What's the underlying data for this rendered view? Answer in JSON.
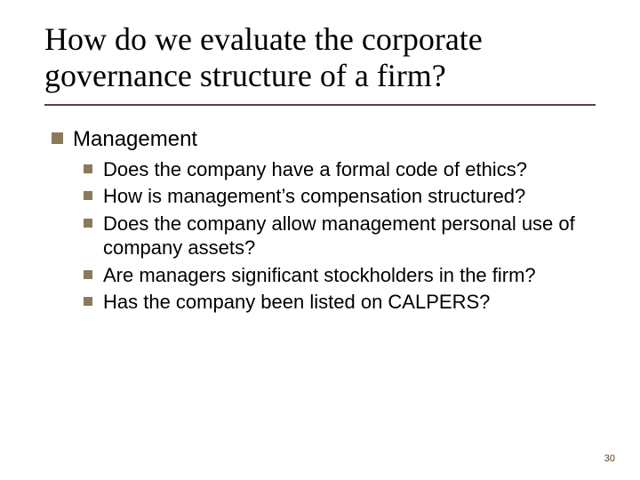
{
  "title": "How do we evaluate the corporate governance structure of a firm?",
  "colors": {
    "bullet": "#8a7a5c",
    "rule": "#5a4040",
    "text": "#000000",
    "pagenum": "#5a3a1a",
    "background": "#ffffff"
  },
  "typography": {
    "title_family": "Times New Roman",
    "title_fontsize": 36,
    "body_family": "Arial",
    "lvl1_fontsize": 24,
    "lvl2_fontsize": 22
  },
  "content": {
    "lvl1": "Management",
    "lvl2": [
      "Does the company have a formal code of ethics?",
      "How is management’s compensation structured?",
      "Does the company allow management personal use of company assets?",
      "Are managers significant stockholders in the firm?",
      "Has the company been listed on CALPERS?"
    ]
  },
  "page_number": "30"
}
